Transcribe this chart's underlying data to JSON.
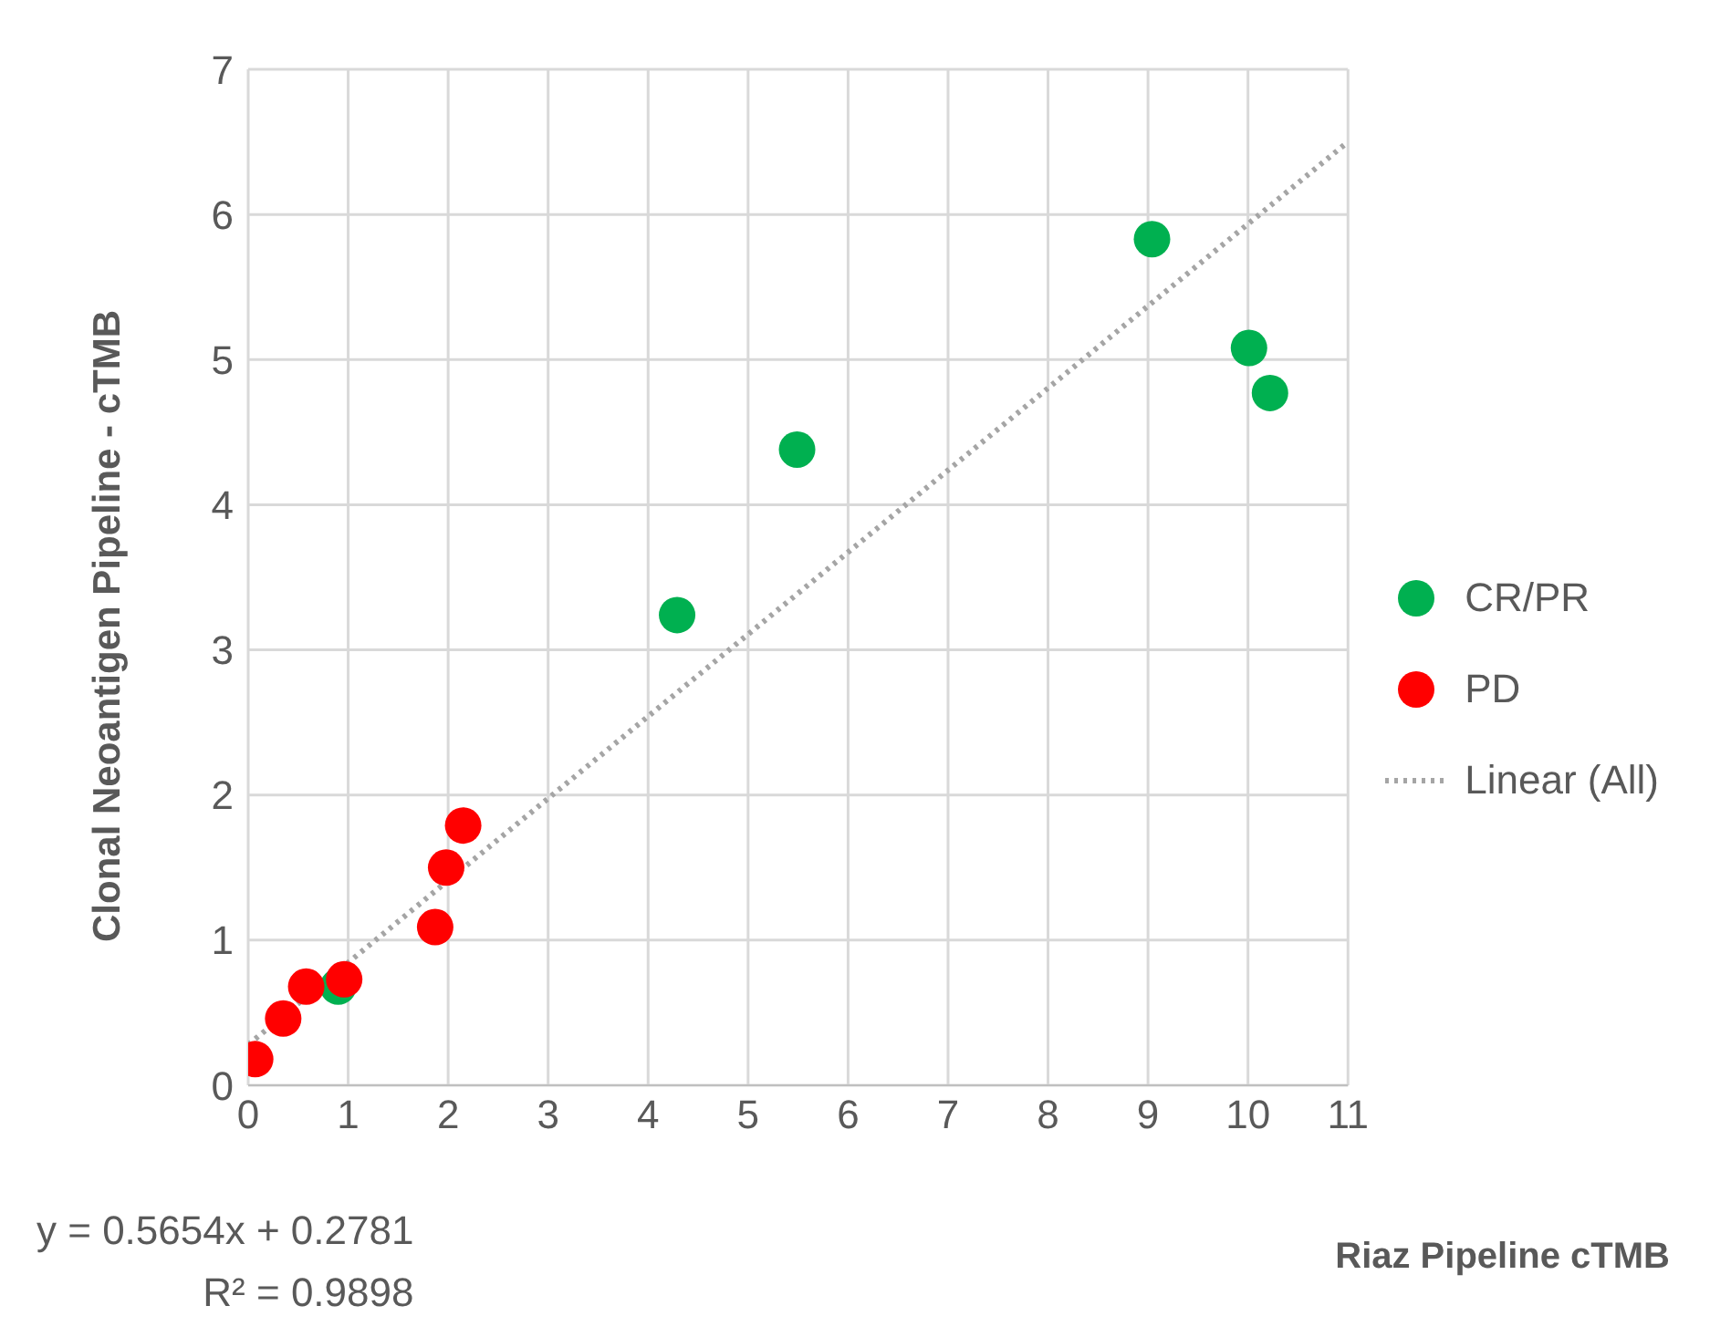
{
  "chart_data": {
    "type": "scatter",
    "xlabel": "Riaz Pipeline cTMB",
    "ylabel": "Clonal Neoantigen Pipeline - cTMB",
    "xlim": [
      0,
      11
    ],
    "xticks": [
      0,
      1,
      2,
      3,
      4,
      5,
      6,
      7,
      8,
      9,
      10,
      11
    ],
    "ylim": [
      0,
      7
    ],
    "yticks": [
      0,
      1,
      2,
      3,
      4,
      5,
      6,
      7
    ],
    "grid": true,
    "legend": "right",
    "marker": "circle",
    "series": [
      {
        "name": "CR/PR",
        "color": "#00b050",
        "x": [
          0.9,
          4.29,
          5.49,
          9.04,
          10.01,
          10.22
        ],
        "values": [
          0.68,
          3.24,
          4.38,
          5.83,
          5.08,
          4.77
        ]
      },
      {
        "name": "PD",
        "color": "#ff0000",
        "x": [
          0.07,
          0.35,
          0.58,
          0.96,
          1.87,
          1.98,
          2.15
        ],
        "values": [
          0.18,
          0.46,
          0.68,
          0.73,
          1.09,
          1.5,
          1.79
        ]
      },
      {
        "name": "Linear (All)",
        "type": "line",
        "color": "#a5a5a5",
        "line_style": "dotted",
        "marker": "none",
        "x": [
          0,
          11
        ],
        "values": [
          0.28,
          6.5
        ]
      }
    ],
    "annotations": [
      "y = 0.5654x + 0.2781",
      "R² = 0.9898"
    ]
  }
}
